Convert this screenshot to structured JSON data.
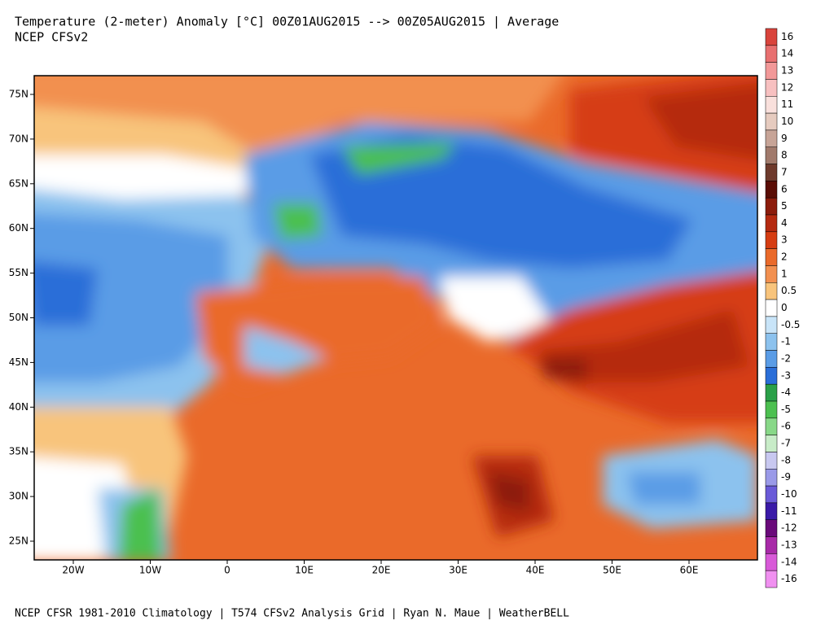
{
  "header": {
    "title": "Temperature (2-meter) Anomaly  [°C] 00Z01AUG2015 --> 00Z05AUG2015 | Average",
    "subtitle": "NCEP CFSv2"
  },
  "map": {
    "lat_labels": [
      "75N",
      "70N",
      "65N",
      "60N",
      "55N",
      "50N",
      "45N",
      "40N",
      "35N",
      "30N",
      "25N"
    ],
    "lon_labels": [
      "20W",
      "10W",
      "0",
      "10E",
      "20E",
      "30E",
      "40E",
      "50E",
      "60E"
    ]
  },
  "legend": {
    "labels": [
      "16",
      "14",
      "13",
      "12",
      "11",
      "10",
      "9",
      "8",
      "7",
      "6",
      "5",
      "4",
      "3",
      "2",
      "1",
      "0.5",
      "0",
      "-0.5",
      "-1",
      "-2",
      "-3",
      "-4",
      "-5",
      "-6",
      "-7",
      "-8",
      "-9",
      "-10",
      "-11",
      "-12",
      "-13",
      "-14",
      "-16"
    ],
    "colors": [
      "#d9443c",
      "#e87070",
      "#f29898",
      "#f7c0c0",
      "#f9e0dc",
      "#e6cbbf",
      "#c7a497",
      "#a17a6c",
      "#6e3a2c",
      "#5a0d05",
      "#8c1c0c",
      "#b52a10",
      "#d63d12",
      "#ea6a2a",
      "#f29050",
      "#f8c47c",
      "#ffffff",
      "#c8e4f8",
      "#8cc2ee",
      "#5a9ce6",
      "#2a6ed8",
      "#2aa048",
      "#4cc050",
      "#88d888",
      "#c8ecc8",
      "#c8c8f0",
      "#9a9ae8",
      "#6a5ad8",
      "#3a1aa8",
      "#6a0a7a",
      "#a82aa8",
      "#d85ad8",
      "#f090f0"
    ]
  },
  "footer": "NCEP CFSR 1981-2010 Climatology | T574 CFSv2 Analysis Grid | Ryan N. Maue | WeatherBELL"
}
